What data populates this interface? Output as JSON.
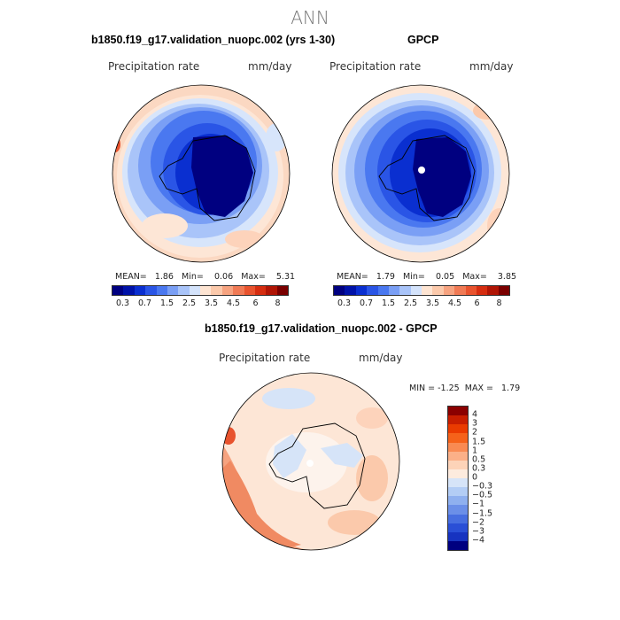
{
  "title": "ANN",
  "panels": [
    {
      "title": "b1850.f19_g17.validation_nuopc.002 (yrs 1-30)",
      "variable_label": "Precipitation rate",
      "units": "mm/day",
      "stats": {
        "mean_label": "MEAN=",
        "mean": "1.86",
        "min_label": "Min=",
        "min": "0.06",
        "max_label": "Max=",
        "max": "5.31"
      }
    },
    {
      "title": "GPCP",
      "variable_label": "Precipitation rate",
      "units": "mm/day",
      "stats": {
        "mean_label": "MEAN=",
        "mean": "1.79",
        "min_label": "Min=",
        "min": "0.05",
        "max_label": "Max=",
        "max": "3.85"
      }
    },
    {
      "title": "b1850.f19_g17.validation_nuopc.002 - GPCP",
      "variable_label": "Precipitation rate",
      "units": "mm/day",
      "stats": {
        "min_label": "MIN =",
        "min": "-1.25",
        "max_label": "MAX =",
        "max": "1.79"
      }
    }
  ],
  "abs_colorbar": {
    "colors": [
      "#000080",
      "#0012a8",
      "#0a2fd0",
      "#2a55e6",
      "#4a78f0",
      "#7a9ff5",
      "#a9c4f9",
      "#d4e3fb",
      "#fde4d2",
      "#fbc9ab",
      "#f6a380",
      "#f07a55",
      "#e8532e",
      "#d52d10",
      "#b01505",
      "#7a0000"
    ],
    "labels": [
      "0.3",
      "0.7",
      "1.5",
      "2.5",
      "3.5",
      "4.5",
      "6",
      "8"
    ]
  },
  "diff_colorbar": {
    "colors": [
      "#8b0000",
      "#c81e00",
      "#ea3b00",
      "#f5621a",
      "#f98a52",
      "#fbb088",
      "#fdd3b8",
      "#fdebde",
      "#d6e4f8",
      "#b3cdf5",
      "#8fb0ef",
      "#6b8fe8",
      "#476ee0",
      "#2a4fd6",
      "#1733c0",
      "#000080"
    ],
    "labels": [
      "4",
      "3",
      "2",
      "1.5",
      "1",
      "0.5",
      "0.3",
      "0",
      "−0.3",
      "−0.5",
      "−1",
      "−1.5",
      "−2",
      "−3",
      "−4"
    ]
  }
}
